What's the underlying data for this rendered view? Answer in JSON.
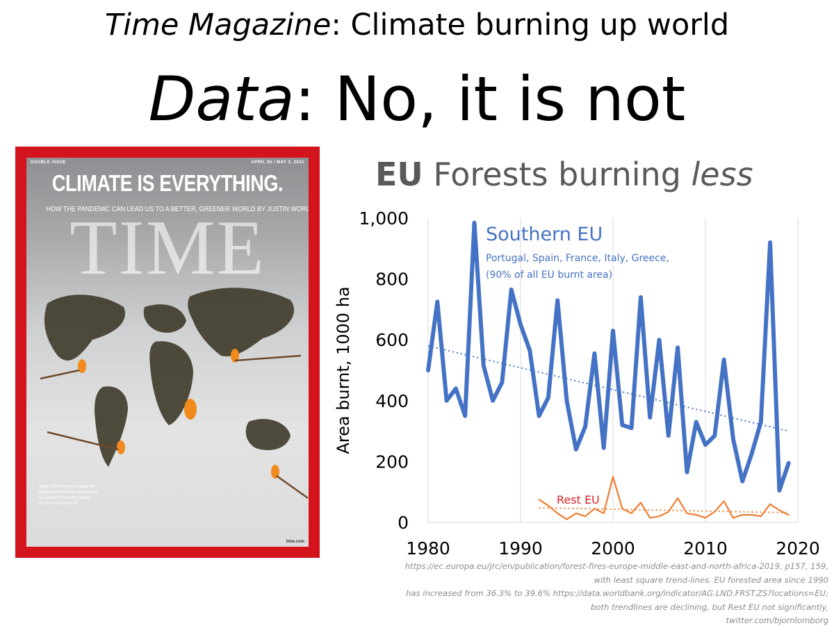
{
  "headline": {
    "line1_italic": "Time Magazine",
    "line1_rest": ": Climate burning up world",
    "line2_italic": "Data",
    "line2_rest": ": No, it is not"
  },
  "cover": {
    "issue_label": "DOUBLE ISSUE",
    "date": "APRIL 26 / MAY 3, 2021",
    "headline": "CLIMATE IS EVERYTHING.",
    "subheadline": "HOW THE PANDEMIC CAN LEAD US TO A BETTER, GREENER WORLD",
    "byline": "BY JUSTIN WORLAND",
    "brand": "TIME",
    "caption": "Artist Pod Hong Yi created this image out of 50,000 matchsticks to represent how the climate crisis connects us all",
    "site": "time.com",
    "frame_color": "#d4141d"
  },
  "chart_title": {
    "bold": "EU",
    "normal": " Forests burning ",
    "italic": "less"
  },
  "source_lines": [
    "https://ec.europa.eu/jrc/en/publication/forest-fires-europe-middle-east-and-north-africa-2019, p157, 159, with least square trend-lines. EU forested area since 1990",
    "has increased from 36.3% to 39.6% https://data.worldbank.org/indicator/AG.LND.FRST.ZS?locations=EU; both trendlines are declining, but Rest EU not significantly,",
    "twitter.com/bjornlomborg"
  ],
  "chart_data": {
    "type": "line",
    "ylabel": "Area burnt, 1000 ha",
    "xlim": [
      1980,
      2020
    ],
    "ylim": [
      0,
      1000
    ],
    "x_ticks": [
      "1980",
      "1990",
      "2000",
      "2010",
      "2020"
    ],
    "y_ticks": [
      "0",
      "200",
      "400",
      "600",
      "800",
      "1,000"
    ],
    "grid": "vertical",
    "series": [
      {
        "name": "Southern EU",
        "note_lines": [
          "Portugal, Spain, France, Italy, Greece,",
          "(90% of all EU burnt area)"
        ],
        "color": "#4472c4",
        "x": [
          1980,
          1981,
          1982,
          1983,
          1984,
          1985,
          1986,
          1987,
          1988,
          1989,
          1990,
          1991,
          1992,
          1993,
          1994,
          1995,
          1996,
          1997,
          1998,
          1999,
          2000,
          2001,
          2002,
          2003,
          2004,
          2005,
          2006,
          2007,
          2008,
          2009,
          2010,
          2011,
          2012,
          2013,
          2014,
          2015,
          2016,
          2017,
          2018,
          2019
        ],
        "values": [
          500,
          725,
          400,
          440,
          350,
          985,
          515,
          400,
          460,
          765,
          650,
          565,
          350,
          410,
          730,
          400,
          240,
          315,
          555,
          245,
          630,
          320,
          310,
          740,
          345,
          600,
          285,
          575,
          165,
          330,
          255,
          285,
          535,
          275,
          135,
          225,
          330,
          920,
          105,
          195
        ],
        "trend": [
          580,
          300
        ]
      },
      {
        "name": "Rest EU",
        "color": "#ed7d31",
        "x": [
          1992,
          1993,
          1994,
          1995,
          1996,
          1997,
          1998,
          1999,
          2000,
          2001,
          2002,
          2003,
          2004,
          2005,
          2006,
          2007,
          2008,
          2009,
          2010,
          2011,
          2012,
          2013,
          2014,
          2015,
          2016,
          2017,
          2018,
          2019
        ],
        "values": [
          75,
          55,
          30,
          10,
          30,
          20,
          45,
          30,
          150,
          45,
          30,
          65,
          15,
          20,
          35,
          80,
          30,
          25,
          15,
          35,
          70,
          15,
          25,
          25,
          20,
          60,
          40,
          25
        ],
        "trend": [
          48,
          32
        ]
      }
    ]
  }
}
